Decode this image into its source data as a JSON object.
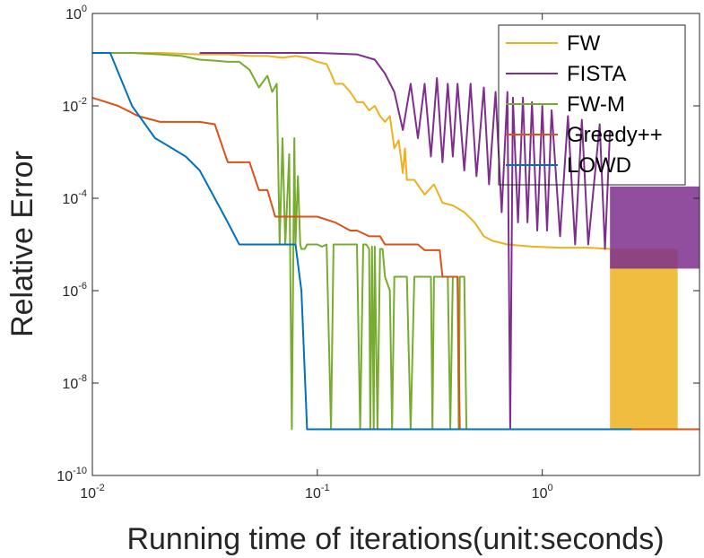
{
  "chart_data": {
    "type": "line",
    "title": "",
    "xlabel": "Running time of iterations(unit:seconds)",
    "ylabel": "Relative Error",
    "xscale": "log",
    "yscale": "log",
    "xlim": [
      0.01,
      5
    ],
    "ylim": [
      1e-10,
      1
    ],
    "xticks": [
      {
        "value": 0.01,
        "base": "10",
        "exp": "-2"
      },
      {
        "value": 0.1,
        "base": "10",
        "exp": "-1"
      },
      {
        "value": 1,
        "base": "10",
        "exp": "0"
      }
    ],
    "yticks": [
      {
        "value": 1,
        "base": "10",
        "exp": "0"
      },
      {
        "value": 0.01,
        "base": "10",
        "exp": "-2"
      },
      {
        "value": 0.0001,
        "base": "10",
        "exp": "-4"
      },
      {
        "value": 1e-06,
        "base": "10",
        "exp": "-6"
      },
      {
        "value": 1e-08,
        "base": "10",
        "exp": "-8"
      },
      {
        "value": 1e-10,
        "base": "10",
        "exp": "-10"
      }
    ],
    "grid": false,
    "legend_position": "top-right",
    "series": [
      {
        "name": "FW",
        "color": "#EDB120",
        "points": [
          [
            0.01,
            0.14
          ],
          [
            0.015,
            0.14
          ],
          [
            0.02,
            0.14
          ],
          [
            0.03,
            0.13
          ],
          [
            0.04,
            0.13
          ],
          [
            0.05,
            0.12
          ],
          [
            0.06,
            0.12
          ],
          [
            0.07,
            0.11
          ],
          [
            0.08,
            0.12
          ],
          [
            0.09,
            0.11
          ],
          [
            0.1,
            0.09
          ],
          [
            0.11,
            0.08
          ],
          [
            0.115,
            0.05
          ],
          [
            0.12,
            0.03
          ],
          [
            0.13,
            0.03
          ],
          [
            0.14,
            0.02
          ],
          [
            0.15,
            0.012
          ],
          [
            0.16,
            0.012
          ],
          [
            0.17,
            0.008
          ],
          [
            0.18,
            0.01
          ],
          [
            0.19,
            0.006
          ],
          [
            0.2,
            0.0045
          ],
          [
            0.21,
            0.006
          ],
          [
            0.22,
            0.0012
          ],
          [
            0.23,
            0.0018
          ],
          [
            0.24,
            0.00035
          ],
          [
            0.245,
            0.0012
          ],
          [
            0.25,
            0.00025
          ],
          [
            0.27,
            0.00025
          ],
          [
            0.3,
            0.00012
          ],
          [
            0.33,
            0.0002
          ],
          [
            0.36,
            8e-05
          ],
          [
            0.4,
            7e-05
          ],
          [
            0.45,
            5e-05
          ],
          [
            0.5,
            3e-05
          ],
          [
            0.55,
            1.5e-05
          ],
          [
            0.6,
            1.2e-05
          ],
          [
            0.7,
            1e-05
          ],
          [
            0.9,
            9e-06
          ],
          [
            1.2,
            8.5e-06
          ],
          [
            1.6,
            8.5e-06
          ],
          [
            2.0,
            8e-06
          ]
        ],
        "band": {
          "from": 2.0,
          "to": 4.0,
          "low": 1e-09,
          "high": 8e-06
        }
      },
      {
        "name": "FISTA",
        "color": "#7E2F8E",
        "points": [
          [
            0.03,
            0.14
          ],
          [
            0.06,
            0.14
          ],
          [
            0.1,
            0.14
          ],
          [
            0.15,
            0.13
          ],
          [
            0.18,
            0.1
          ],
          [
            0.2,
            0.05
          ],
          [
            0.22,
            0.02
          ],
          [
            0.24,
            0.003
          ],
          [
            0.26,
            0.03
          ],
          [
            0.28,
            0.002
          ],
          [
            0.3,
            0.03
          ],
          [
            0.32,
            0.0008
          ],
          [
            0.34,
            0.04
          ],
          [
            0.36,
            0.0006
          ],
          [
            0.38,
            0.03
          ],
          [
            0.4,
            0.0008
          ],
          [
            0.42,
            0.03
          ],
          [
            0.45,
            0.0004
          ],
          [
            0.48,
            0.03
          ],
          [
            0.51,
            0.0003
          ],
          [
            0.55,
            0.025
          ],
          [
            0.58,
            0.0002
          ],
          [
            0.62,
            0.02
          ],
          [
            0.66,
            5e-05
          ],
          [
            0.7,
            0.02
          ],
          [
            0.72,
            1e-09
          ],
          [
            0.74,
            0.015
          ],
          [
            0.78,
            3e-05
          ],
          [
            0.82,
            0.015
          ],
          [
            0.86,
            3e-05
          ],
          [
            0.9,
            0.012
          ],
          [
            0.95,
            2e-05
          ],
          [
            1.0,
            0.01
          ],
          [
            1.05,
            2e-05
          ],
          [
            1.1,
            0.008
          ],
          [
            1.2,
            1.5e-05
          ],
          [
            1.3,
            0.006
          ],
          [
            1.4,
            1e-05
          ],
          [
            1.5,
            0.005
          ],
          [
            1.6,
            1e-05
          ],
          [
            1.8,
            0.004
          ],
          [
            1.9,
            8e-06
          ],
          [
            2.0,
            0.003
          ]
        ],
        "band": {
          "from": 2.0,
          "to": 5.0,
          "low": 3e-06,
          "high": 0.00018
        }
      },
      {
        "name": "FW-M",
        "color": "#77AC30",
        "points": [
          [
            0.01,
            0.14
          ],
          [
            0.015,
            0.14
          ],
          [
            0.02,
            0.13
          ],
          [
            0.025,
            0.12
          ],
          [
            0.03,
            0.1
          ],
          [
            0.035,
            0.095
          ],
          [
            0.04,
            0.09
          ],
          [
            0.045,
            0.09
          ],
          [
            0.05,
            0.06
          ],
          [
            0.055,
            0.025
          ],
          [
            0.06,
            0.045
          ],
          [
            0.063,
            0.02
          ],
          [
            0.066,
            0.03
          ],
          [
            0.068,
            1e-05
          ],
          [
            0.07,
            0.002
          ],
          [
            0.072,
            1e-05
          ],
          [
            0.075,
            0.0009
          ],
          [
            0.077,
            1e-09
          ],
          [
            0.079,
            0.002
          ],
          [
            0.08,
            1e-05
          ],
          [
            0.082,
            0.0003
          ],
          [
            0.084,
            1e-05
          ],
          [
            0.085,
            8e-06
          ],
          [
            0.088,
            8e-06
          ],
          [
            0.09,
            1e-05
          ],
          [
            0.095,
            1e-05
          ],
          [
            0.1,
            1e-05
          ],
          [
            0.105,
            9e-06
          ],
          [
            0.11,
            1e-05
          ],
          [
            0.115,
            1e-09
          ],
          [
            0.118,
            1e-05
          ],
          [
            0.12,
            1e-05
          ],
          [
            0.13,
            1e-05
          ],
          [
            0.14,
            1e-05
          ],
          [
            0.15,
            1e-05
          ],
          [
            0.155,
            1e-09
          ],
          [
            0.16,
            1e-05
          ],
          [
            0.165,
            1e-05
          ],
          [
            0.17,
            8e-06
          ],
          [
            0.172,
            1e-09
          ],
          [
            0.175,
            9e-06
          ],
          [
            0.178,
            1e-09
          ],
          [
            0.18,
            9e-06
          ],
          [
            0.185,
            1e-09
          ],
          [
            0.19,
            8e-06
          ],
          [
            0.195,
            8e-06
          ],
          [
            0.2,
            2e-06
          ],
          [
            0.21,
            1e-06
          ],
          [
            0.215,
            1e-09
          ],
          [
            0.22,
            2e-06
          ],
          [
            0.25,
            2e-06
          ],
          [
            0.26,
            1e-09
          ],
          [
            0.27,
            2e-06
          ],
          [
            0.3,
            2e-06
          ],
          [
            0.32,
            2e-06
          ],
          [
            0.325,
            1e-09
          ],
          [
            0.33,
            2e-06
          ],
          [
            0.35,
            2e-06
          ],
          [
            0.38,
            2e-06
          ],
          [
            0.39,
            1e-09
          ],
          [
            0.4,
            2e-06
          ],
          [
            0.42,
            2e-06
          ],
          [
            0.425,
            1e-09
          ],
          [
            0.43,
            2e-06
          ],
          [
            0.45,
            2e-06
          ],
          [
            0.46,
            1e-09
          ]
        ]
      },
      {
        "name": "Greedy++",
        "color": "#D95319",
        "points": [
          [
            0.01,
            0.015
          ],
          [
            0.013,
            0.01
          ],
          [
            0.016,
            0.006
          ],
          [
            0.02,
            0.0045
          ],
          [
            0.025,
            0.0045
          ],
          [
            0.03,
            0.0045
          ],
          [
            0.035,
            0.004
          ],
          [
            0.04,
            0.0006
          ],
          [
            0.045,
            0.0006
          ],
          [
            0.05,
            0.0006
          ],
          [
            0.055,
            0.00015
          ],
          [
            0.06,
            0.00015
          ],
          [
            0.065,
            4e-05
          ],
          [
            0.07,
            4e-05
          ],
          [
            0.08,
            4e-05
          ],
          [
            0.09,
            4e-05
          ],
          [
            0.1,
            4e-05
          ],
          [
            0.12,
            3e-05
          ],
          [
            0.14,
            2e-05
          ],
          [
            0.15,
            2e-05
          ],
          [
            0.17,
            1.5e-05
          ],
          [
            0.19,
            1.5e-05
          ],
          [
            0.2,
            1e-05
          ],
          [
            0.25,
            1e-05
          ],
          [
            0.28,
            1e-05
          ],
          [
            0.3,
            7.5e-06
          ],
          [
            0.35,
            7.5e-06
          ],
          [
            0.36,
            2e-06
          ],
          [
            0.4,
            2e-06
          ],
          [
            0.42,
            2e-06
          ],
          [
            0.43,
            1e-09
          ],
          [
            1.0,
            1e-09
          ],
          [
            2.0,
            1e-09
          ],
          [
            5.0,
            1e-09
          ]
        ]
      },
      {
        "name": "LOWD",
        "color": "#0072BD",
        "points": [
          [
            0.01,
            0.14
          ],
          [
            0.012,
            0.14
          ],
          [
            0.015,
            0.01
          ],
          [
            0.019,
            0.002
          ],
          [
            0.021,
            0.0015
          ],
          [
            0.026,
            0.0008
          ],
          [
            0.03,
            0.0004
          ],
          [
            0.035,
            0.0001
          ],
          [
            0.04,
            3e-05
          ],
          [
            0.045,
            1e-05
          ],
          [
            0.05,
            1e-05
          ],
          [
            0.06,
            1e-05
          ],
          [
            0.07,
            1e-05
          ],
          [
            0.075,
            1e-05
          ],
          [
            0.08,
            1e-05
          ],
          [
            0.085,
            1e-06
          ],
          [
            0.09,
            1e-09
          ],
          [
            0.1,
            1e-09
          ],
          [
            0.5,
            1e-09
          ],
          [
            1.0,
            1e-09
          ],
          [
            2.5,
            1e-09
          ]
        ]
      }
    ]
  }
}
